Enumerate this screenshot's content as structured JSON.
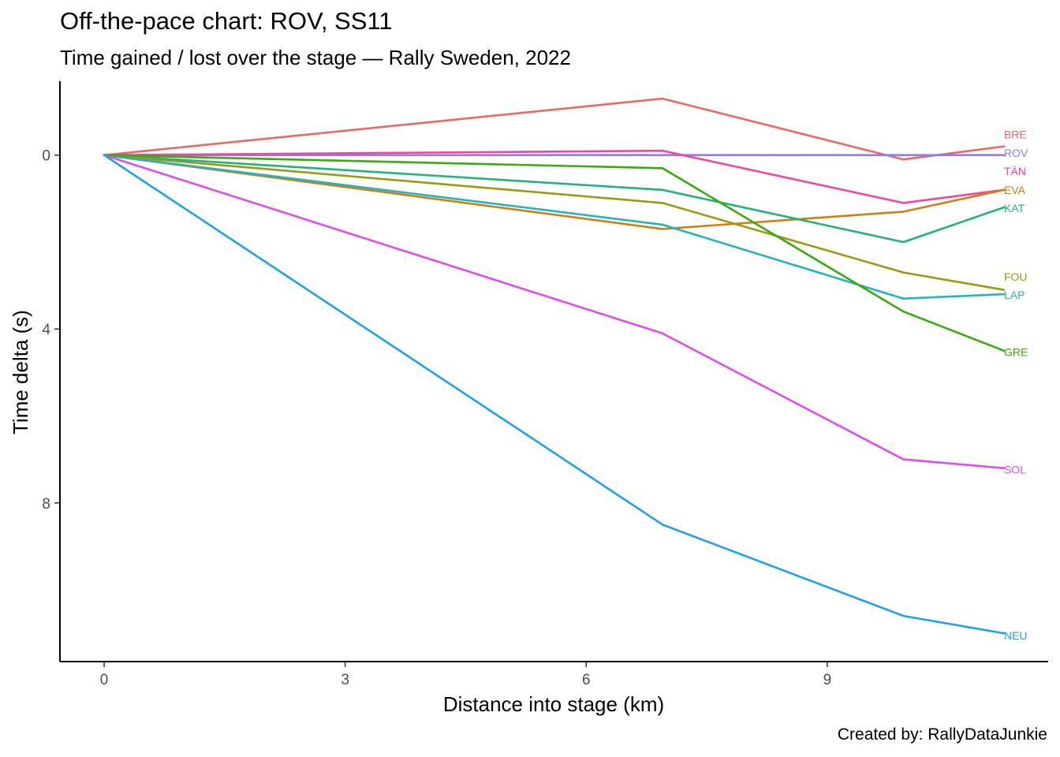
{
  "header": {
    "title": "Off-the-pace chart: ROV, SS11",
    "subtitle": "Time gained / lost over the stage — Rally Sweden, 2022"
  },
  "caption": "Created by: RallyDataJunkie",
  "chart_data": {
    "type": "line",
    "title": "Off-the-pace chart: ROV, SS11",
    "subtitle": "Time gained / lost over the stage — Rally Sweden, 2022",
    "xlabel": "Distance into stage (km)",
    "ylabel": "Time delta (s)",
    "xlim": [
      -0.55,
      11.75
    ],
    "ylim": [
      -1.7,
      11.65
    ],
    "y_reversed": true,
    "x_ticks": [
      0,
      3,
      6,
      9
    ],
    "y_ticks": [
      0,
      4,
      8
    ],
    "grid": false,
    "legend": "direct labels at line ends (right)",
    "x": [
      0,
      6.95,
      9.95,
      11.2
    ],
    "series": [
      {
        "name": "BRE",
        "color": "#E76A63",
        "values": [
          0,
          -1.3,
          0.1,
          -0.2
        ]
      },
      {
        "name": "ROV",
        "color": "#8A7DF5",
        "values": [
          0,
          0,
          0,
          0
        ]
      },
      {
        "name": "TÄN",
        "color": "#F0469F",
        "values": [
          0,
          -0.1,
          1.1,
          0.8
        ]
      },
      {
        "name": "EVA",
        "color": "#CF7E10",
        "values": [
          0,
          1.7,
          1.3,
          0.8
        ]
      },
      {
        "name": "KAT",
        "color": "#22B27A",
        "values": [
          0,
          0.8,
          2.0,
          1.2
        ]
      },
      {
        "name": "FOU",
        "color": "#9A9A14",
        "values": [
          0,
          1.1,
          2.7,
          3.1
        ]
      },
      {
        "name": "LAP",
        "color": "#25B4BC",
        "values": [
          0,
          1.6,
          3.3,
          3.2
        ]
      },
      {
        "name": "GRE",
        "color": "#3BAA0E",
        "values": [
          0,
          0.3,
          3.6,
          4.5
        ]
      },
      {
        "name": "SOL",
        "color": "#DC4FEA",
        "values": [
          0,
          4.1,
          7.0,
          7.2
        ]
      },
      {
        "name": "NEU",
        "color": "#1EA1E8",
        "values": [
          0,
          8.5,
          10.6,
          11.0
        ]
      }
    ],
    "label_y": {
      "BRE": -0.48,
      "ROV": -0.05,
      "TÄN": 0.37,
      "EVA": 0.8,
      "KAT": 1.22,
      "FOU": 2.8,
      "LAP": 3.22,
      "GRE": 4.53,
      "SOL": 7.23,
      "NEU": 11.05
    }
  }
}
